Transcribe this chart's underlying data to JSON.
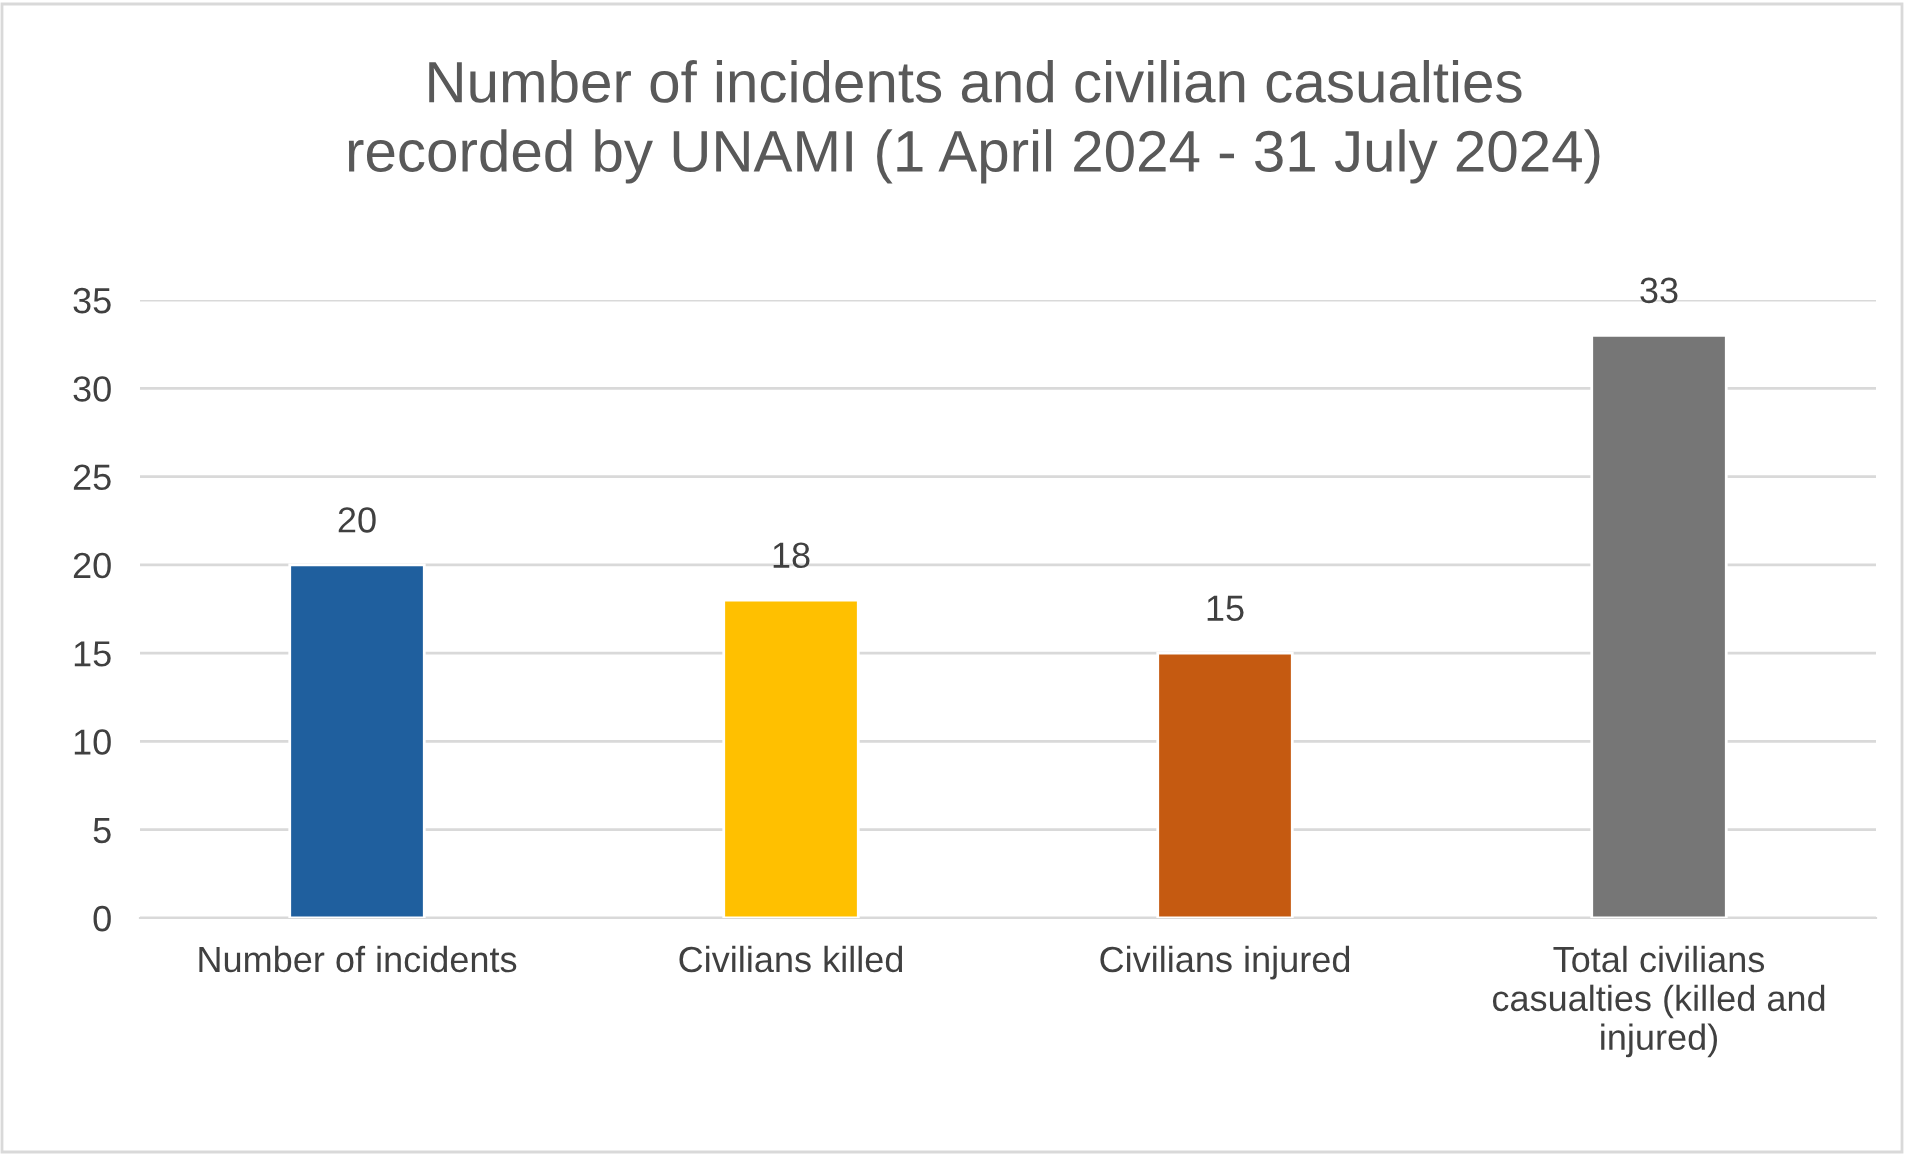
{
  "chart_data": {
    "type": "bar",
    "title": "Number of incidents and civilian casualties recorded by UNAMI (1 April 2024 - 31 July 2024)",
    "categories": [
      "Number of incidents",
      "Civilians killed",
      "Civilians injured",
      "Total civilians casualties (killed and injured)"
    ],
    "values": [
      20,
      18,
      15,
      33
    ],
    "colors": [
      "#1f5f9e",
      "#ffc000",
      "#c55a11",
      "#767676"
    ],
    "ylim": [
      0,
      35
    ],
    "yticks": [
      0,
      5,
      10,
      15,
      20,
      25,
      30,
      35
    ],
    "grid": "y",
    "data_labels": true,
    "legend": false
  }
}
